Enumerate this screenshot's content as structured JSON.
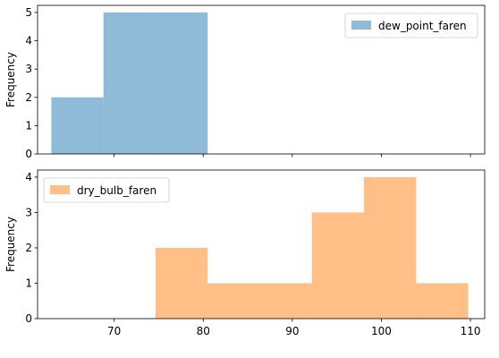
{
  "chart_data": [
    {
      "type": "bar",
      "subtype": "histogram",
      "ylabel": "Frequency",
      "xlim": [
        61.4,
        111.6
      ],
      "ylim": [
        0,
        5.25
      ],
      "yticks": [
        0,
        1,
        2,
        3,
        4,
        5
      ],
      "xticks": [
        70,
        80,
        90,
        100,
        110
      ],
      "show_x_tick_labels": false,
      "legend_position": "top-right",
      "series": [
        {
          "name": "dew_point_faren",
          "color": "#1f77b4",
          "opacity": 0.5,
          "bins": [
            {
              "x0": 62.95,
              "x1": 68.8,
              "value": 2
            },
            {
              "x0": 68.8,
              "x1": 74.65,
              "value": 5
            },
            {
              "x0": 74.65,
              "x1": 80.5,
              "value": 5
            }
          ]
        }
      ]
    },
    {
      "type": "bar",
      "subtype": "histogram",
      "ylabel": "Frequency",
      "xlim": [
        61.4,
        111.6
      ],
      "ylim": [
        0,
        4.2
      ],
      "yticks": [
        0,
        1,
        2,
        3,
        4
      ],
      "xticks": [
        70,
        80,
        90,
        100,
        110
      ],
      "show_x_tick_labels": true,
      "legend_position": "top-left",
      "series": [
        {
          "name": "dry_bulb_faren",
          "color": "#ff7f0e",
          "opacity": 0.5,
          "bins": [
            {
              "x0": 74.65,
              "x1": 80.5,
              "value": 2
            },
            {
              "x0": 80.5,
              "x1": 86.35,
              "value": 1
            },
            {
              "x0": 86.35,
              "x1": 92.2,
              "value": 1
            },
            {
              "x0": 92.2,
              "x1": 98.05,
              "value": 3
            },
            {
              "x0": 98.05,
              "x1": 103.9,
              "value": 4
            },
            {
              "x0": 103.9,
              "x1": 109.75,
              "value": 1
            }
          ]
        }
      ]
    }
  ]
}
